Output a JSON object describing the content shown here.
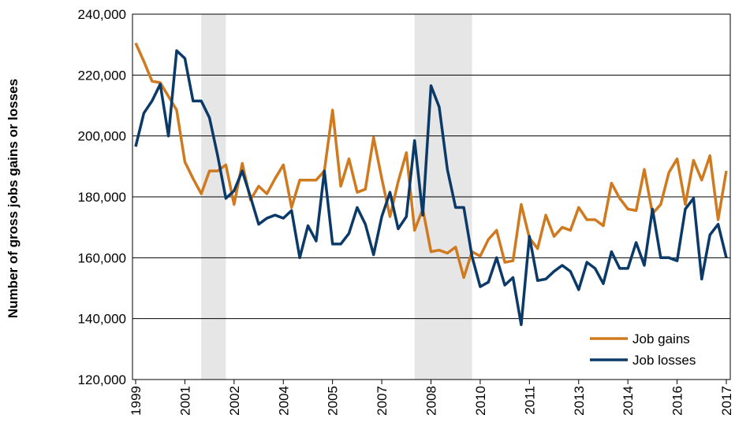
{
  "chart_data": {
    "type": "line",
    "y_label": "Number of gross jobs gains or losses",
    "categories": [
      "1999",
      null,
      null,
      null,
      null,
      null,
      "2001",
      null,
      null,
      null,
      null,
      null,
      "2002",
      null,
      null,
      null,
      null,
      null,
      "2004",
      null,
      null,
      null,
      null,
      null,
      "2005",
      null,
      null,
      null,
      null,
      null,
      "2007",
      null,
      null,
      null,
      null,
      null,
      "2008",
      null,
      null,
      null,
      null,
      null,
      "2010",
      null,
      null,
      null,
      null,
      null,
      "2011",
      null,
      null,
      null,
      null,
      null,
      "2013",
      null,
      null,
      null,
      null,
      null,
      "2014",
      null,
      null,
      null,
      null,
      null,
      "2016",
      null,
      null,
      null,
      null,
      null,
      "2017"
    ],
    "series": [
      {
        "name": "Job gains",
        "color": "#d07a1f",
        "values": [
          230500,
          224500,
          218000,
          217500,
          213000,
          208500,
          191500,
          186000,
          181000,
          188500,
          188500,
          190500,
          177500,
          191000,
          179000,
          183500,
          181000,
          186000,
          190500,
          176500,
          185500,
          185500,
          185500,
          188500,
          208500,
          183500,
          192500,
          181500,
          182500,
          199500,
          186000,
          173500,
          185000,
          194500,
          169000,
          176000,
          162000,
          162500,
          161500,
          163500,
          153500,
          162000,
          160500,
          166000,
          169000,
          158500,
          159000,
          177500,
          166500,
          163000,
          174000,
          167000,
          170000,
          169000,
          176500,
          172500,
          172500,
          170500,
          184500,
          179500,
          176000,
          175500,
          189000,
          174500,
          177500,
          188000,
          192500,
          177500,
          192000,
          185500,
          193500,
          172500,
          188500
        ]
      },
      {
        "name": "Job losses",
        "color": "#0b3a68",
        "values": [
          196500,
          207500,
          211500,
          217000,
          200000,
          228000,
          225500,
          211500,
          211500,
          206000,
          193500,
          179500,
          182000,
          188500,
          180000,
          171000,
          173000,
          174000,
          173000,
          175500,
          160000,
          170500,
          165500,
          188500,
          164500,
          164500,
          168000,
          176500,
          171000,
          161000,
          173500,
          181500,
          169500,
          173500,
          198500,
          174000,
          216500,
          209500,
          189000,
          176500,
          176500,
          160500,
          150500,
          152000,
          160000,
          151000,
          153500,
          138000,
          167000,
          152500,
          153000,
          155500,
          157500,
          155500,
          149500,
          158500,
          156500,
          151500,
          162000,
          156500,
          156500,
          165000,
          157500,
          176000,
          160000,
          160000,
          159000,
          176000,
          179500,
          153000,
          167500,
          171000,
          160000
        ]
      }
    ],
    "ylim": [
      120000,
      240000
    ],
    "yticks": [
      {
        "value": 120000,
        "label": "120,000"
      },
      {
        "value": 140000,
        "label": "140,000"
      },
      {
        "value": 160000,
        "label": "160,000"
      },
      {
        "value": 180000,
        "label": "180,000"
      },
      {
        "value": 200000,
        "label": "200,000"
      },
      {
        "value": 220000,
        "label": "220,000"
      },
      {
        "value": 240000,
        "label": "240,000"
      }
    ],
    "grid": true,
    "shaded_ranges": [
      [
        8,
        11
      ],
      [
        34,
        41
      ]
    ],
    "legend": "lower right"
  }
}
